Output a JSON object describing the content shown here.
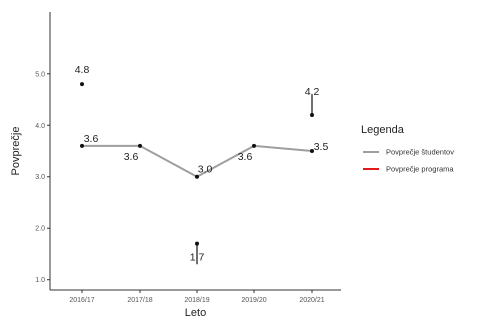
{
  "chart_data": {
    "type": "line",
    "categories": [
      "2016/17",
      "2017/18",
      "2018/19",
      "2019/20",
      "2020/21"
    ],
    "series": [
      {
        "name": "Povprečje študentov",
        "color": "#9e9e9e",
        "values": [
          3.6,
          3.6,
          3.0,
          3.6,
          3.5
        ],
        "labels": [
          "3.6",
          "3.6",
          "3.0",
          "3.6",
          "3.5"
        ]
      },
      {
        "name": "Povprečje programa",
        "color": "#e31a1c",
        "values": [
          null,
          null,
          null,
          null,
          null
        ],
        "labels": []
      }
    ],
    "individual_points": [
      {
        "category": "2016/17",
        "value": 4.8,
        "label": "4.8",
        "segment_from": 4.8,
        "segment_to": 4.8
      },
      {
        "category": "2018/19",
        "value": 1.7,
        "label": "1.7",
        "segment_from": 1.7,
        "segment_to": 1.3
      },
      {
        "category": "2020/21",
        "value": 4.2,
        "label": "4.2",
        "segment_from": 4.2,
        "segment_to": 4.6
      }
    ],
    "title": "",
    "xlabel": "Leto",
    "ylabel": "Povprečje",
    "ylim": [
      0.8,
      6.2
    ],
    "yticks": [
      "1.0",
      "2.0",
      "3.0",
      "4.0",
      "5.0"
    ],
    "ytick_values": [
      1.0,
      2.0,
      3.0,
      4.0,
      5.0
    ],
    "grid": false,
    "legend": {
      "title": "Legenda",
      "placement": "right",
      "entries": [
        "Povprečje študentov",
        "Povprečje programa"
      ]
    }
  }
}
